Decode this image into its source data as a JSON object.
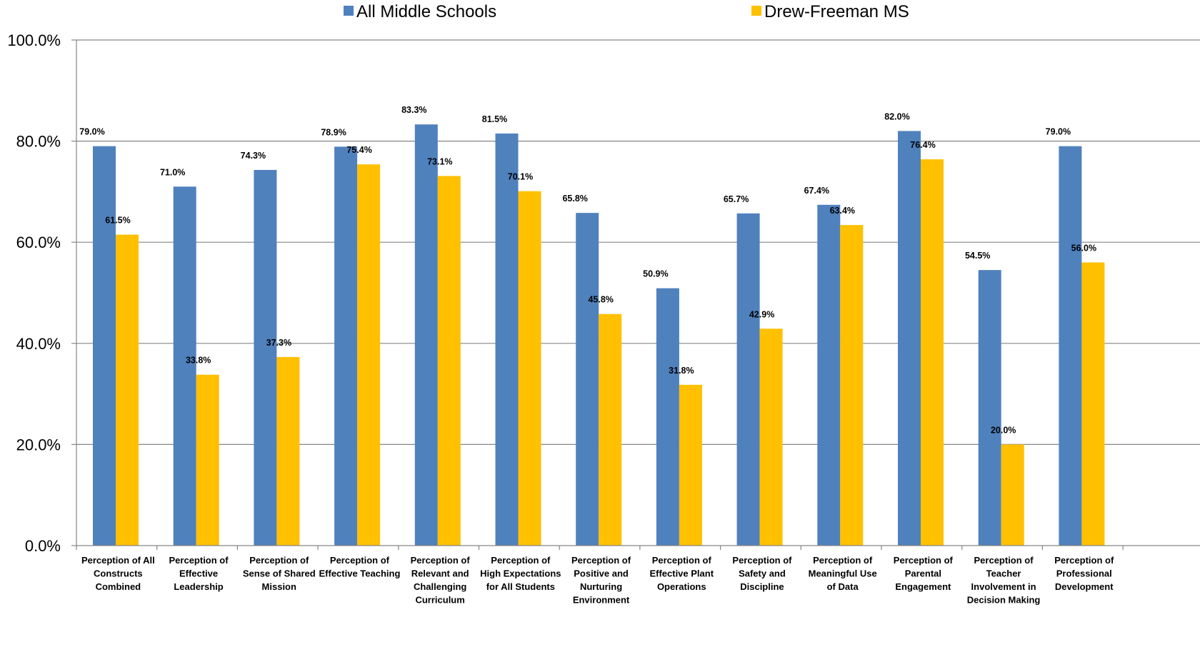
{
  "chart_data": {
    "type": "bar",
    "legend_position": "top",
    "grid": true,
    "ylim": [
      0,
      100
    ],
    "y_ticks": [
      "0.0%",
      "20.0%",
      "40.0%",
      "60.0%",
      "80.0%",
      "100.0%"
    ],
    "y_tick_values": [
      0,
      20,
      40,
      60,
      80,
      100
    ],
    "categories": [
      [
        "Perception of All",
        "Constructs",
        "Combined"
      ],
      [
        "Perception of",
        "Effective",
        "Leadership"
      ],
      [
        "Perception of",
        "Sense of Shared",
        "Mission"
      ],
      [
        "Perception of",
        "Effective Teaching"
      ],
      [
        "Perception of",
        "Relevant and",
        "Challenging",
        "Curriculum"
      ],
      [
        "Perception of",
        "High Expectations",
        "for All Students"
      ],
      [
        "Perception of",
        "Positive and",
        "Nurturing",
        "Environment"
      ],
      [
        "Perception of",
        "Effective Plant",
        "Operations"
      ],
      [
        "Perception of",
        "Safety and",
        "Discipline"
      ],
      [
        "Perception of",
        "Meaningful Use",
        "of Data"
      ],
      [
        "Perception of",
        "Parental",
        "Engagement"
      ],
      [
        "Perception of",
        "Teacher",
        "Involvement in",
        "Decision Making"
      ],
      [
        "Perception of",
        "Professional",
        "Development"
      ]
    ],
    "series": [
      {
        "name": "All Middle Schools",
        "color": "#4f81bd",
        "values": [
          79.0,
          71.0,
          74.3,
          78.9,
          83.3,
          81.5,
          65.8,
          50.9,
          65.7,
          67.4,
          82.0,
          54.5,
          79.0
        ],
        "labels": [
          "79.0%",
          "71.0%",
          "74.3%",
          "78.9%",
          "83.3%",
          "81.5%",
          "65.8%",
          "50.9%",
          "65.7%",
          "67.4%",
          "82.0%",
          "54.5%",
          "79.0%"
        ]
      },
      {
        "name": "Drew-Freeman MS",
        "color": "#ffc000",
        "values": [
          61.5,
          33.8,
          37.3,
          75.4,
          73.1,
          70.1,
          45.8,
          31.8,
          42.9,
          63.4,
          76.4,
          20.0,
          56.0
        ],
        "labels": [
          "61.5%",
          "33.8%",
          "37.3%",
          "75.4%",
          "73.1%",
          "70.1%",
          "45.8%",
          "31.8%",
          "42.9%",
          "63.4%",
          "76.4%",
          "20.0%",
          "56.0%"
        ]
      }
    ],
    "gridline_color": "#868686",
    "axis_color": "#868686"
  }
}
